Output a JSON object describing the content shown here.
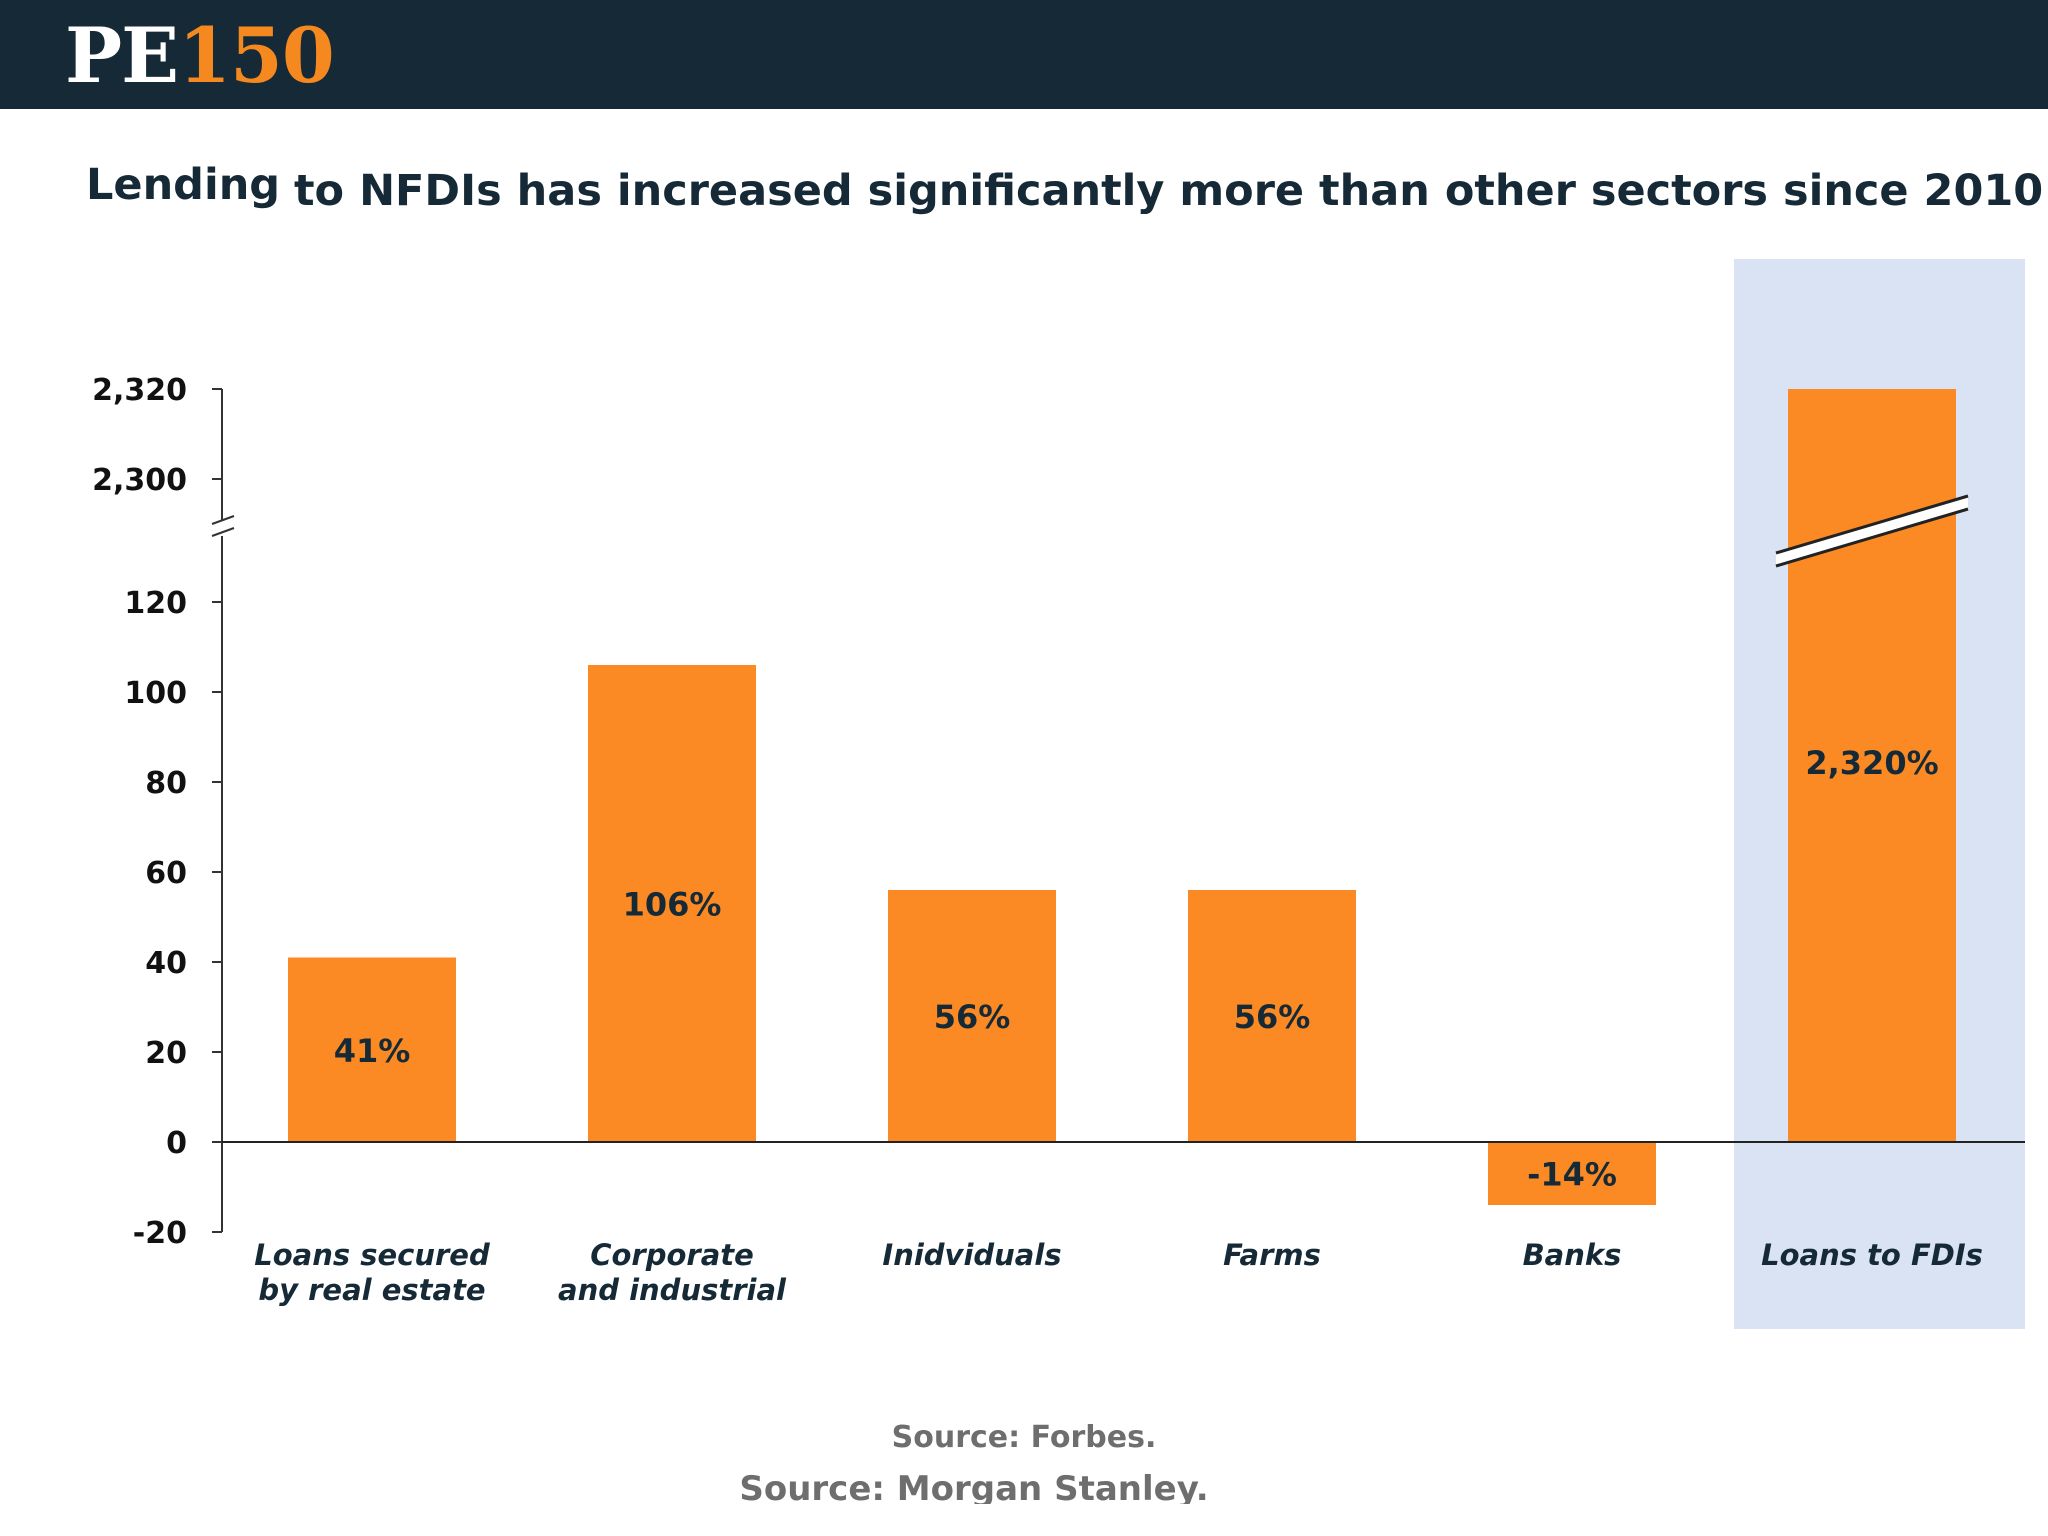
{
  "header": {
    "logo_pe": "PE",
    "logo_num": "150"
  },
  "title": {
    "part1": "Lending",
    "part2": "to NFDIs has increased significantly more than other sectors since 2010"
  },
  "chart_data": {
    "type": "bar",
    "title": "Lending to NFDIs has increased significantly more than other sectors since 2010",
    "categories": [
      [
        "Loans secured",
        "by real estate"
      ],
      [
        "Corporate",
        "and industrial"
      ],
      [
        "Inidviduals"
      ],
      [
        "Farms"
      ],
      [
        "Banks"
      ],
      [
        "Loans to FDIs"
      ]
    ],
    "values": [
      41,
      106,
      56,
      56,
      -14,
      2320
    ],
    "data_labels": [
      "41%",
      "106%",
      "56%",
      "56%",
      "-14%",
      "2,320%"
    ],
    "highlighted_category": "Loans to FDIs",
    "axis_break": {
      "lower_max": 130,
      "upper_min": 2290
    },
    "yticks_lower": [
      {
        "value": -20,
        "label": "-20"
      },
      {
        "value": 0,
        "label": "0"
      },
      {
        "value": 20,
        "label": "20"
      },
      {
        "value": 40,
        "label": "40"
      },
      {
        "value": 60,
        "label": "60"
      },
      {
        "value": 80,
        "label": "80"
      },
      {
        "value": 100,
        "label": "100"
      },
      {
        "value": 120,
        "label": "120"
      }
    ],
    "yticks_upper": [
      {
        "value": 2300,
        "label": "2,300"
      },
      {
        "value": 2320,
        "label": "2,320"
      }
    ],
    "ylim": [
      -20,
      2320
    ],
    "xlabel": "",
    "ylabel": ""
  },
  "colors": {
    "header_bg": "#152a36",
    "bar": "#fb8a24",
    "highlight_bg": "#dae3f3",
    "text_dark": "#152a36",
    "logo_accent": "#f5891f",
    "source_text": "#6e6e6e"
  },
  "sources": {
    "primary": "Source: Forbes.",
    "secondary": "Source: Morgan Stanley."
  }
}
